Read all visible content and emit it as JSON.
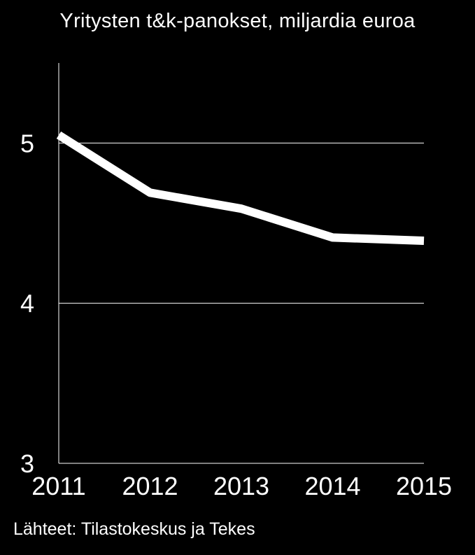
{
  "chart_data": {
    "type": "line",
    "title": "Yritysten t&k-panokset, miljardia euroa",
    "xlabel": "",
    "ylabel": "",
    "x": [
      "2011",
      "2012",
      "2013",
      "2014",
      "2015"
    ],
    "series": [
      {
        "values": [
          5.05,
          4.69,
          4.59,
          4.41,
          4.39
        ]
      }
    ],
    "ylim": [
      3,
      5.5
    ],
    "yticks": [
      3,
      4,
      5
    ],
    "grid": true,
    "legend": "none",
    "colors": {
      "background": "#000000",
      "line": "#ffffff",
      "grid": "#ffffff",
      "text": "#ffffff"
    }
  },
  "source": "Lähteet: Tilastokeskus ja Tekes"
}
